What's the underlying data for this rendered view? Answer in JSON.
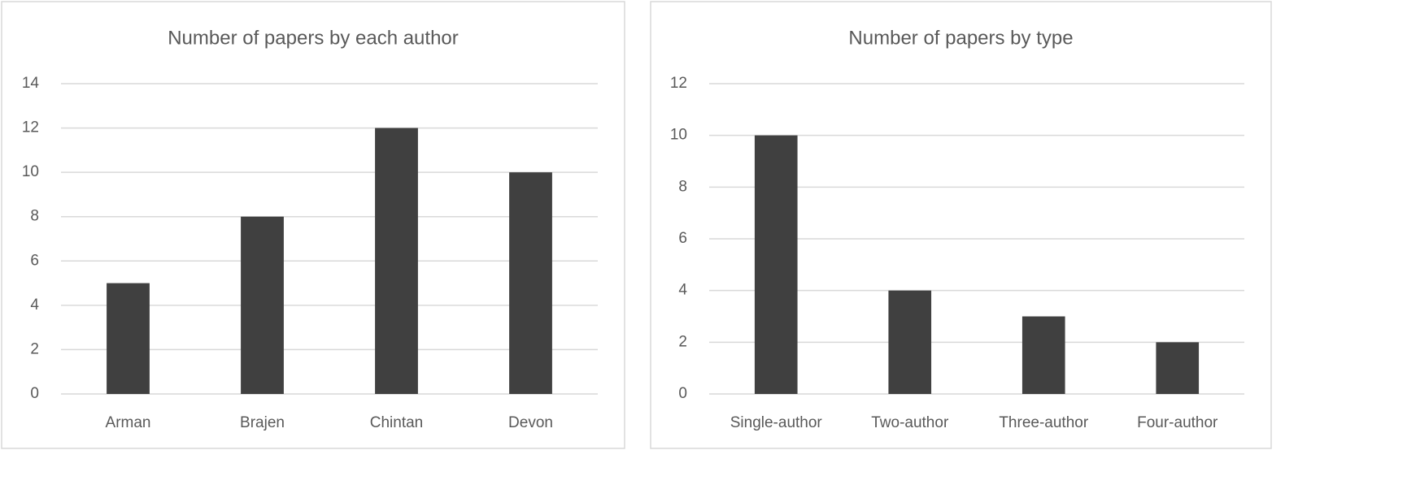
{
  "chart_data": [
    {
      "type": "bar",
      "title": "Number of papers by each author",
      "categories": [
        "Arman",
        "Brajen",
        "Chintan",
        "Devon"
      ],
      "values": [
        5,
        8,
        12,
        10
      ],
      "color": "#404040",
      "ylim": [
        0,
        14
      ],
      "yticks": [
        0,
        2,
        4,
        6,
        8,
        10,
        12,
        14
      ],
      "grid": true
    },
    {
      "type": "bar",
      "title": "Number of papers by type",
      "categories": [
        "Single-author",
        "Two-author",
        "Three-author",
        "Four-author"
      ],
      "values": [
        10,
        4,
        3,
        2
      ],
      "color": "#404040",
      "ylim": [
        0,
        12
      ],
      "yticks": [
        0,
        2,
        4,
        6,
        8,
        10,
        12
      ],
      "grid": true
    }
  ]
}
